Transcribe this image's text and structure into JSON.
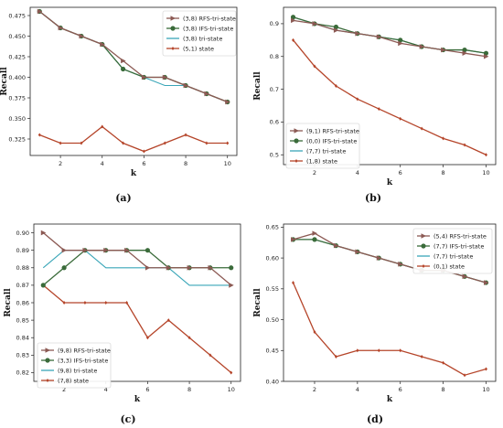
{
  "colors": {
    "rfs": "#8c5a54",
    "ifs": "#3a6b3a",
    "tri": "#3aa6b8",
    "state": "#b5452a"
  },
  "chart_data": [
    {
      "type": "line",
      "panel_label": "(a)",
      "xlabel": "k",
      "ylabel": "Recall",
      "x": [
        1,
        2,
        3,
        4,
        5,
        6,
        7,
        8,
        9,
        10
      ],
      "xticks": [
        "2",
        "4",
        "6",
        "8",
        "10"
      ],
      "yticks": [
        "0.325",
        "0.350",
        "0.375",
        "0.400",
        "0.425",
        "0.450",
        "0.475"
      ],
      "ylim": [
        0.305,
        0.485
      ],
      "legend_position": "top-right",
      "series": [
        {
          "name": "(3,8) RFS-tri-state",
          "style": "rfs",
          "values": [
            0.48,
            0.46,
            0.45,
            0.44,
            0.42,
            0.4,
            0.4,
            0.39,
            0.38,
            0.37
          ]
        },
        {
          "name": "(3,8) IFS-tri-state",
          "style": "ifs",
          "values": [
            0.48,
            0.46,
            0.45,
            0.44,
            0.41,
            0.4,
            0.4,
            0.39,
            0.38,
            0.37
          ]
        },
        {
          "name": "(3,8) tri-state",
          "style": "tri",
          "values": [
            0.48,
            0.46,
            0.45,
            0.44,
            0.41,
            0.4,
            0.39,
            0.39,
            0.38,
            0.37
          ]
        },
        {
          "name": "(5,1) state",
          "style": "state",
          "values": [
            0.33,
            0.32,
            0.32,
            0.34,
            0.32,
            0.31,
            0.32,
            0.33,
            0.32,
            0.32
          ]
        }
      ]
    },
    {
      "type": "line",
      "panel_label": "(b)",
      "xlabel": "k",
      "ylabel": "Recall",
      "x": [
        1,
        2,
        3,
        4,
        5,
        6,
        7,
        8,
        9,
        10
      ],
      "xticks": [
        "2",
        "4",
        "6",
        "8",
        "10"
      ],
      "yticks": [
        "0.5",
        "0.6",
        "0.7",
        "0.8",
        "0.9"
      ],
      "ylim": [
        0.47,
        0.95
      ],
      "legend_position": "bottom-left",
      "series": [
        {
          "name": "(9,1) RFS-tri-state",
          "style": "rfs",
          "values": [
            0.91,
            0.9,
            0.88,
            0.87,
            0.86,
            0.84,
            0.83,
            0.82,
            0.81,
            0.8
          ]
        },
        {
          "name": "(0,0) IFS-tri-state",
          "style": "ifs",
          "values": [
            0.92,
            0.9,
            0.89,
            0.87,
            0.86,
            0.85,
            0.83,
            0.82,
            0.82,
            0.81
          ]
        },
        {
          "name": "(7,7) tri-state",
          "style": "tri",
          "values": [
            0.92,
            0.9,
            0.88,
            0.87,
            0.86,
            0.85,
            0.83,
            0.82,
            0.82,
            0.81
          ]
        },
        {
          "name": "(1,8) state",
          "style": "state",
          "values": [
            0.85,
            0.77,
            0.71,
            0.67,
            0.64,
            0.61,
            0.58,
            0.55,
            0.53,
            0.5
          ]
        }
      ]
    },
    {
      "type": "line",
      "panel_label": "(c)",
      "xlabel": "k",
      "ylabel": "Recall",
      "x": [
        1,
        2,
        3,
        4,
        5,
        6,
        7,
        8,
        9,
        10
      ],
      "xticks": [
        "2",
        "4",
        "6",
        "8",
        "10"
      ],
      "yticks": [
        "0.82",
        "0.83",
        "0.84",
        "0.85",
        "0.86",
        "0.87",
        "0.88",
        "0.89",
        "0.90"
      ],
      "ylim": [
        0.815,
        0.905
      ],
      "legend_position": "bottom-left",
      "series": [
        {
          "name": "(9,8) RFS-tri-state",
          "style": "rfs",
          "values": [
            0.9,
            0.89,
            0.89,
            0.89,
            0.89,
            0.88,
            0.88,
            0.88,
            0.88,
            0.87
          ]
        },
        {
          "name": "(3,3) IFS-tri-state",
          "style": "ifs",
          "values": [
            0.87,
            0.88,
            0.89,
            0.89,
            0.89,
            0.89,
            0.88,
            0.88,
            0.88,
            0.88
          ]
        },
        {
          "name": "(9,8) tri-state",
          "style": "tri",
          "values": [
            0.88,
            0.89,
            0.89,
            0.88,
            0.88,
            0.88,
            0.88,
            0.87,
            0.87,
            0.87
          ]
        },
        {
          "name": "(7,8) state",
          "style": "state",
          "values": [
            0.87,
            0.86,
            0.86,
            0.86,
            0.86,
            0.84,
            0.85,
            0.84,
            0.83,
            0.82
          ]
        }
      ]
    },
    {
      "type": "line",
      "panel_label": "(d)",
      "xlabel": "k",
      "ylabel": "Recall",
      "x": [
        1,
        2,
        3,
        4,
        5,
        6,
        7,
        8,
        9,
        10
      ],
      "xticks": [
        "2",
        "4",
        "6",
        "8",
        "10"
      ],
      "yticks": [
        "0.40",
        "0.45",
        "0.50",
        "0.55",
        "0.60",
        "0.65"
      ],
      "ylim": [
        0.4,
        0.655
      ],
      "legend_position": "top-right",
      "series": [
        {
          "name": "(5,4) RFS-tri-state",
          "style": "rfs",
          "values": [
            0.63,
            0.64,
            0.62,
            0.61,
            0.6,
            0.59,
            0.58,
            0.58,
            0.57,
            0.56
          ]
        },
        {
          "name": "(7,7) IFS-tri-state",
          "style": "ifs",
          "values": [
            0.63,
            0.63,
            0.62,
            0.61,
            0.6,
            0.59,
            0.58,
            0.58,
            0.57,
            0.56
          ]
        },
        {
          "name": "(7,7) tri-state",
          "style": "tri",
          "values": [
            0.63,
            0.63,
            0.62,
            0.61,
            0.6,
            0.59,
            0.58,
            0.58,
            0.57,
            0.56
          ]
        },
        {
          "name": "(0,1) state",
          "style": "state",
          "values": [
            0.56,
            0.48,
            0.44,
            0.45,
            0.45,
            0.45,
            0.44,
            0.43,
            0.41,
            0.42
          ]
        }
      ]
    }
  ]
}
